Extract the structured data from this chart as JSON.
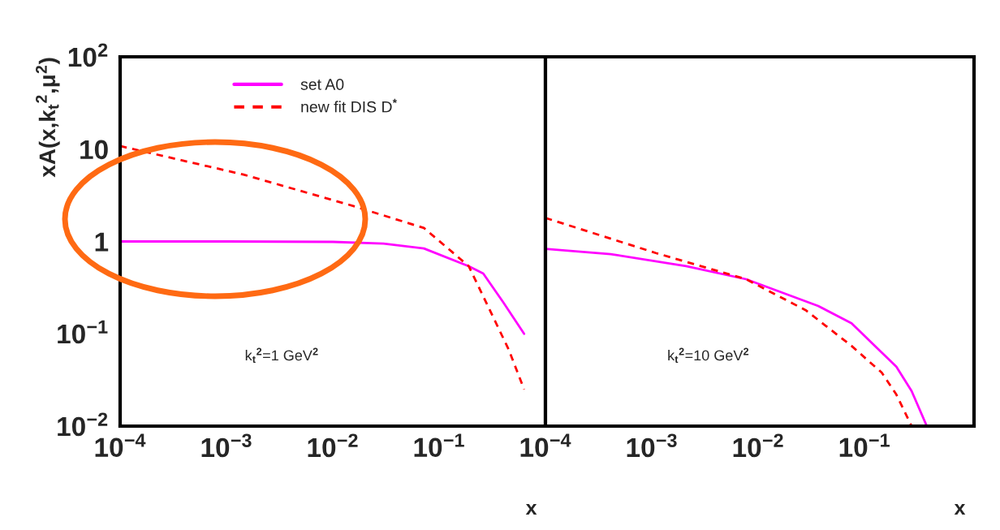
{
  "chart_data": [
    {
      "type": "line",
      "log": "xy",
      "xlabel": "x",
      "ylabel": "xA(x,k$_{t}$$^{2}$,μ$^{2}$)",
      "legend": "top",
      "xlim": [
        0.0001,
        1
      ],
      "ylim": [
        0.01,
        100
      ],
      "xticks": [
        {
          "value": 0.0001,
          "label": "10$^{−4}$"
        },
        {
          "value": 0.001,
          "label": "10$^{−3}$"
        },
        {
          "value": 0.01,
          "label": "10$^{−2}$"
        },
        {
          "value": 0.1,
          "label": "10$^{−1}$"
        }
      ],
      "yticks": [
        {
          "value": 0.01,
          "label": "10$^{−2}$"
        },
        {
          "value": 0.1,
          "label": "10$^{−1}$"
        },
        1,
        10,
        {
          "value": 100,
          "label": "10$^{2}$"
        }
      ],
      "annotations": [
        "k$_{t}$$^{2}$=1 GeV$^{2}$"
      ],
      "series": [
        {
          "name": "set A0",
          "color": "#ff00ff",
          "line_style": "solid",
          "x": [
            0.0001,
            0.001,
            0.01,
            0.03,
            0.072,
            0.19,
            0.26,
            0.4,
            0.63
          ],
          "values": [
            1.0,
            1.0,
            0.99,
            0.95,
            0.84,
            0.54,
            0.45,
            0.22,
            0.1
          ]
        },
        {
          "name": "new fit DIS D$^{*}$",
          "color": "#ff0000",
          "line_style": "dashed",
          "x": [
            0.0001,
            0.00145,
            0.0142,
            0.072,
            0.19,
            0.3,
            0.45,
            0.63
          ],
          "values": [
            10.8,
            5.3,
            2.5,
            1.4,
            0.54,
            0.18,
            0.068,
            0.025
          ]
        }
      ]
    },
    {
      "type": "line",
      "log": "xy",
      "xlabel": "x",
      "tick_labels": "x",
      "xlim": [
        0.0001,
        1.07
      ],
      "ylim": [
        0.01,
        100
      ],
      "xticks": [
        {
          "value": 0.0001,
          "label": "10$^{−4}$"
        },
        {
          "value": 0.001,
          "label": "10$^{−3}$"
        },
        {
          "value": 0.01,
          "label": "10$^{−2}$"
        },
        {
          "value": 0.1,
          "label": "10$^{−1}$"
        }
      ],
      "yticks": [
        0.01,
        0.1,
        1,
        10,
        100
      ],
      "annotations": [
        "k$_{t}$$^{2}$=10 GeV$^{2}$"
      ],
      "series": [
        {
          "color": "#ff00ff",
          "line_style": "solid",
          "x": [
            0.0001,
            0.00041,
            0.0021,
            0.0077,
            0.0367,
            0.0754,
            0.199,
            0.277,
            0.385
          ],
          "values": [
            0.83,
            0.73,
            0.54,
            0.39,
            0.2,
            0.13,
            0.044,
            0.024,
            0.01
          ]
        },
        {
          "color": "#ff0000",
          "line_style": "dashed",
          "x": [
            0.0001,
            0.00109,
            0.0077,
            0.028,
            0.0754,
            0.145,
            0.199,
            0.277
          ],
          "values": [
            1.8,
            0.75,
            0.39,
            0.18,
            0.074,
            0.038,
            0.022,
            0.01
          ]
        }
      ]
    }
  ]
}
